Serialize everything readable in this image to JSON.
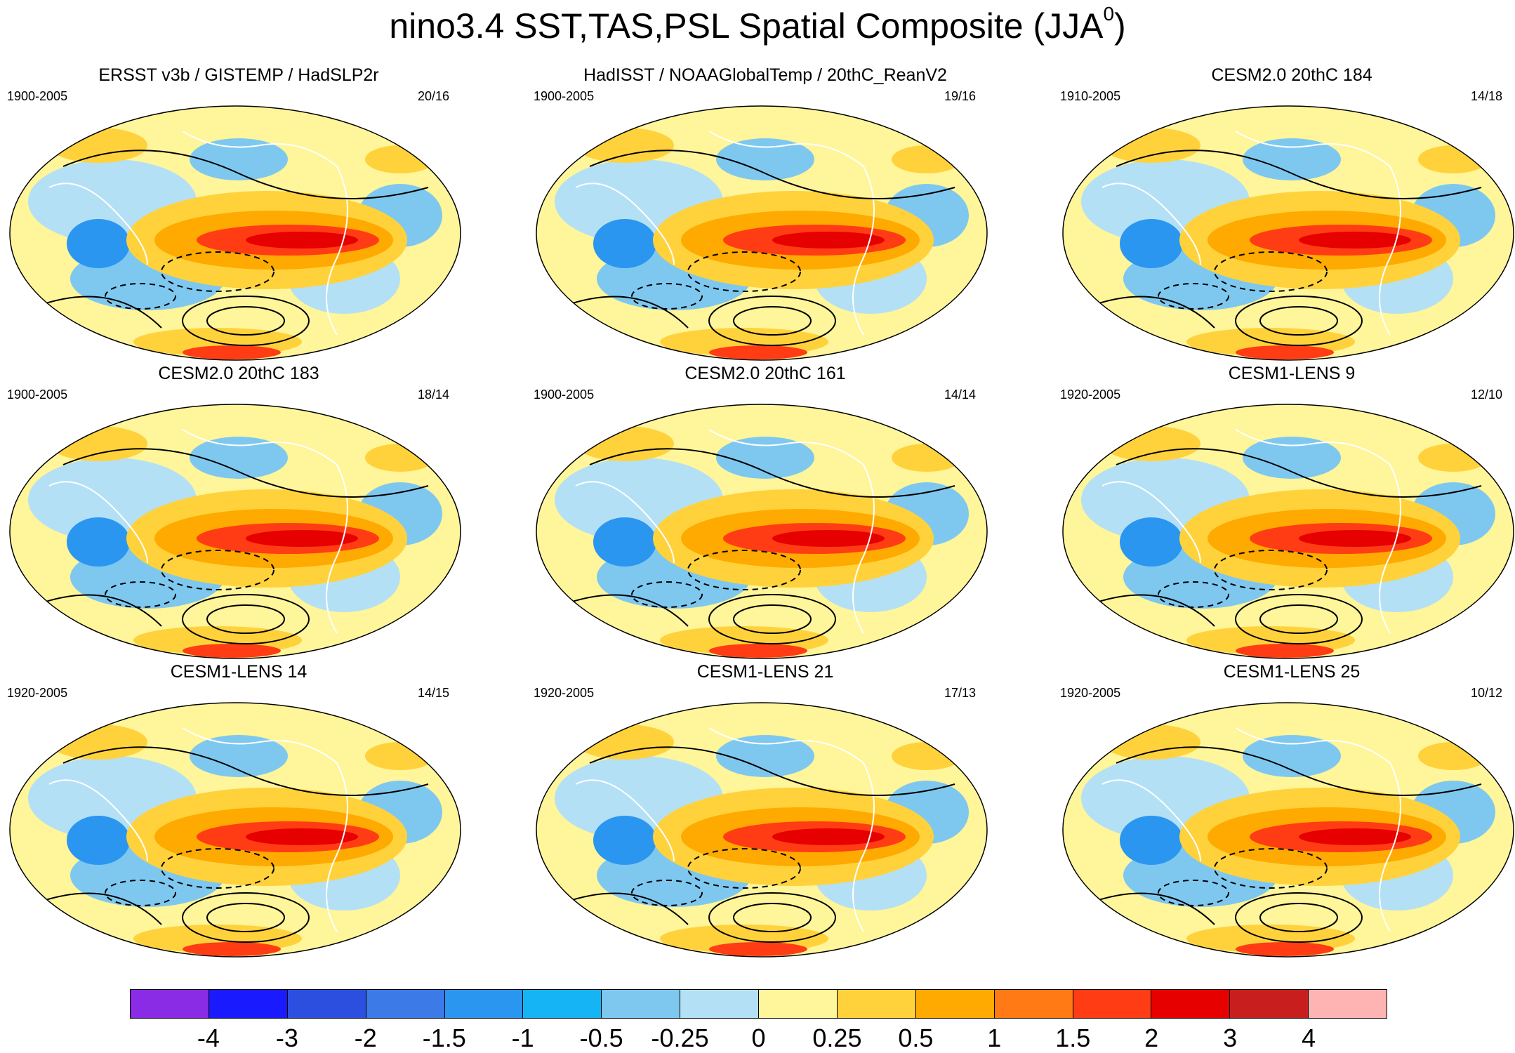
{
  "title": {
    "main": "nino3.4 SST,TAS,PSL Spatial Composite (JJA",
    "superscript": "0",
    "close": ")"
  },
  "chart_data": {
    "type": "heatmap",
    "projection": "Robinson global maps, filled contours with PSL contour lines",
    "panels": [
      {
        "title": "ERSST v3b / GISTEMP / HadSLP2r",
        "years": "1900-2005",
        "count": "20/16"
      },
      {
        "title": "HadISST / NOAAGlobalTemp / 20thC_ReanV2",
        "years": "1900-2005",
        "count": "19/16"
      },
      {
        "title": "CESM2.0 20thC 184",
        "years": "1910-2005",
        "count": "14/18"
      },
      {
        "title": "CESM2.0 20thC 183",
        "years": "1900-2005",
        "count": "18/14"
      },
      {
        "title": "CESM2.0 20thC 161",
        "years": "1900-2005",
        "count": "14/14"
      },
      {
        "title": "CESM1-LENS 9",
        "years": "1920-2005",
        "count": "12/10"
      },
      {
        "title": "CESM1-LENS 14",
        "years": "1920-2005",
        "count": "14/15"
      },
      {
        "title": "CESM1-LENS 21",
        "years": "1920-2005",
        "count": "17/13"
      },
      {
        "title": "CESM1-LENS 25",
        "years": "1920-2005",
        "count": "10/12"
      }
    ],
    "colorbar": {
      "levels": [
        "-4",
        "-3",
        "-2",
        "-1.5",
        "-1",
        "-0.5",
        "-0.25",
        "0",
        "0.25",
        "0.5",
        "1",
        "1.5",
        "2",
        "3",
        "4"
      ],
      "colors": [
        "#8a2be6",
        "#1a1aff",
        "#2d4fe0",
        "#3c7ae8",
        "#2b96f0",
        "#14b4f5",
        "#7ec8f0",
        "#b4e0f5",
        "#fff59a",
        "#ffd23c",
        "#ffaa00",
        "#ff7a14",
        "#ff3c14",
        "#e60000",
        "#c81e1e",
        "#ffb4b4"
      ]
    },
    "palette": {
      "ocean_land_bg": "#b4e0f5",
      "warm_light": "#fff59a",
      "warm_mid": "#ffd23c",
      "warm_orange": "#ffaa00",
      "warm_red": "#ff3c14",
      "warm_dark": "#e60000",
      "cool_mid": "#7ec8f0",
      "cool_strong": "#2b96f0",
      "cool_dark": "#3c7ae8"
    }
  }
}
